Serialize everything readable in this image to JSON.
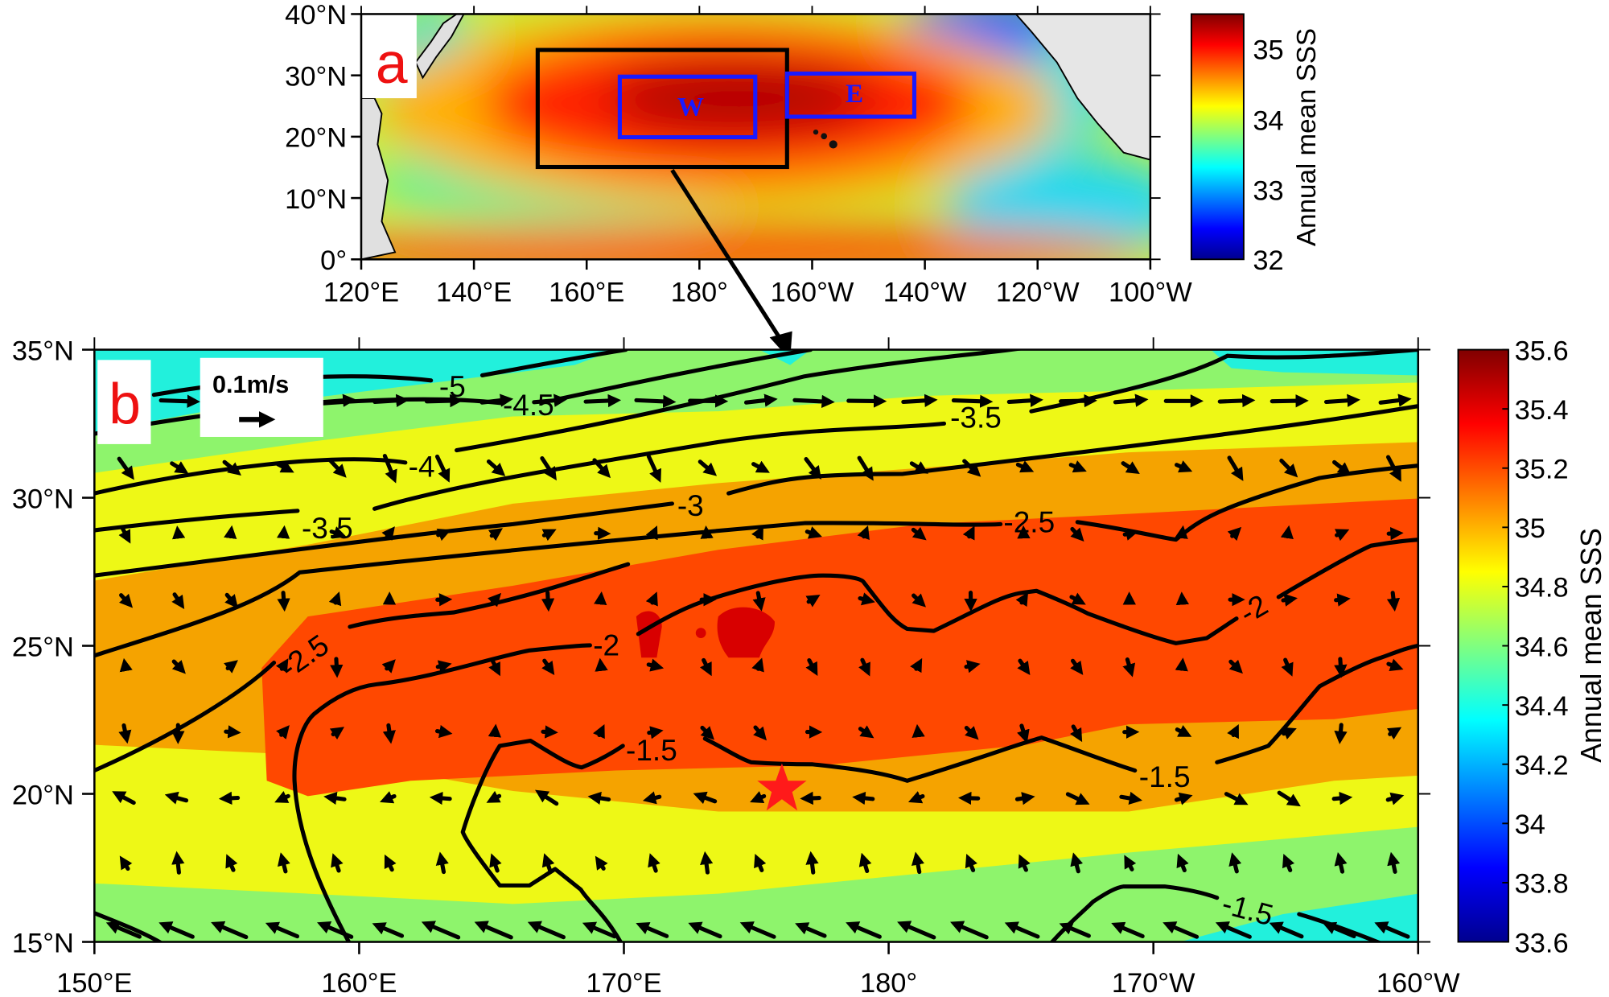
{
  "panel_a": {
    "label": "a",
    "lat_ticks": [
      "40°N",
      "30°N",
      "20°N",
      "10°N",
      "0°"
    ],
    "lon_ticks": [
      "120°E",
      "140°E",
      "160°E",
      "180°",
      "160°W",
      "140°W",
      "120°W",
      "100°W"
    ],
    "box_west_label": "W",
    "box_east_label": "E",
    "colorbar": {
      "title": "Annual mean SSS",
      "ticks": [
        "35",
        "34",
        "33",
        "32"
      ],
      "range": [
        32,
        35.5
      ]
    }
  },
  "panel_b": {
    "label": "b",
    "lat_ticks": [
      "35°N",
      "30°N",
      "25°N",
      "20°N",
      "15°N"
    ],
    "lon_ticks": [
      "150°E",
      "160°E",
      "170°E",
      "180°",
      "170°W",
      "160°W"
    ],
    "vector_scale_label": "0.1m/s",
    "contour_labels": [
      "-5",
      "-4.5",
      "-4",
      "-3.5",
      "-3.5",
      "-3",
      "-2.5",
      "-2.5",
      "-2",
      "-2",
      "-1.5",
      "-1.5",
      "-1.5"
    ],
    "colorbar": {
      "title": "Annual mean SSS",
      "ticks": [
        "35.6",
        "35.4",
        "35.2",
        "35",
        "34.8",
        "34.6",
        "34.4",
        "34.2",
        "34",
        "33.8",
        "33.6"
      ],
      "range": [
        33.6,
        35.6
      ]
    }
  },
  "colors": {
    "star": "#ff1a1a",
    "box_blue": "#1a1aff",
    "label_red": "#ee1111"
  }
}
